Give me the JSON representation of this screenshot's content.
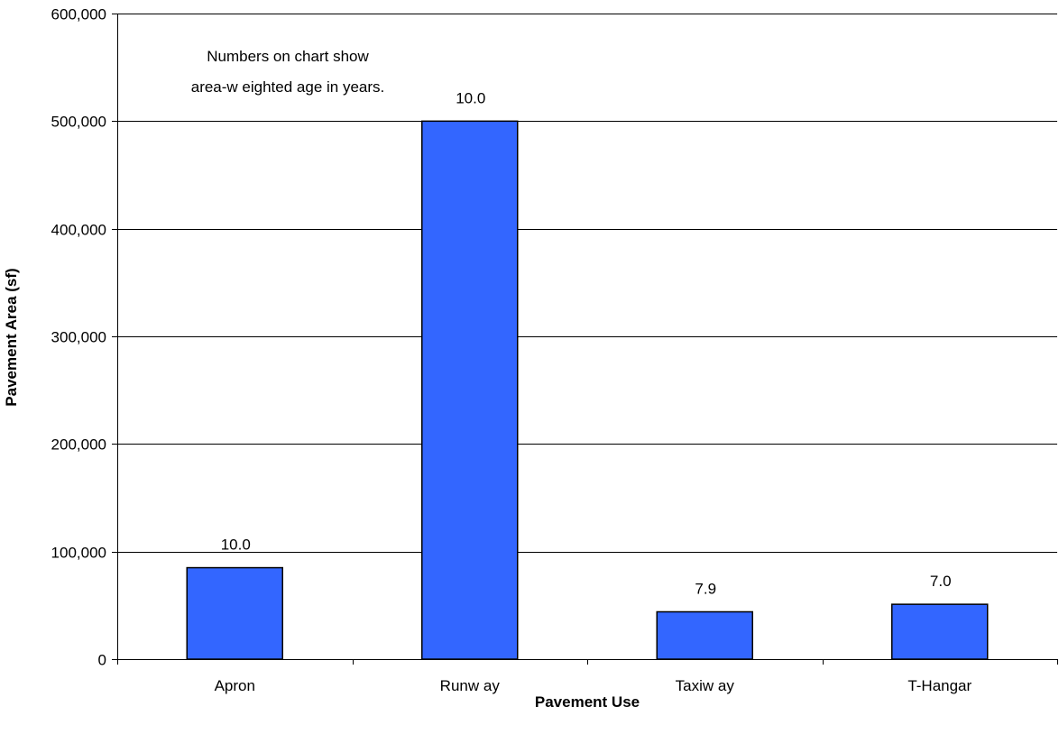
{
  "chart_data": {
    "type": "bar",
    "categories": [
      "Apron",
      "Runw ay",
      "Taxiw ay",
      "T-Hangar"
    ],
    "values": [
      85000,
      500000,
      44000,
      51000
    ],
    "data_labels": [
      "10.0",
      "10.0",
      "7.9",
      "7.0"
    ],
    "xlabel": "Pavement Use",
    "ylabel": "Pavement Area (sf)",
    "ylim": [
      0,
      600000
    ],
    "y_ticks": [
      0,
      100000,
      200000,
      300000,
      400000,
      500000,
      600000
    ],
    "y_tick_labels": [
      "0",
      "100,000",
      "200,000",
      "300,000",
      "400,000",
      "500,000",
      "600,000"
    ],
    "grid": true,
    "legend": "none",
    "annotation_lines": [
      "Numbers on chart show",
      "area-w eighted age in years."
    ],
    "bar_color": "#3366FF",
    "bar_edge_color": "#000000"
  }
}
